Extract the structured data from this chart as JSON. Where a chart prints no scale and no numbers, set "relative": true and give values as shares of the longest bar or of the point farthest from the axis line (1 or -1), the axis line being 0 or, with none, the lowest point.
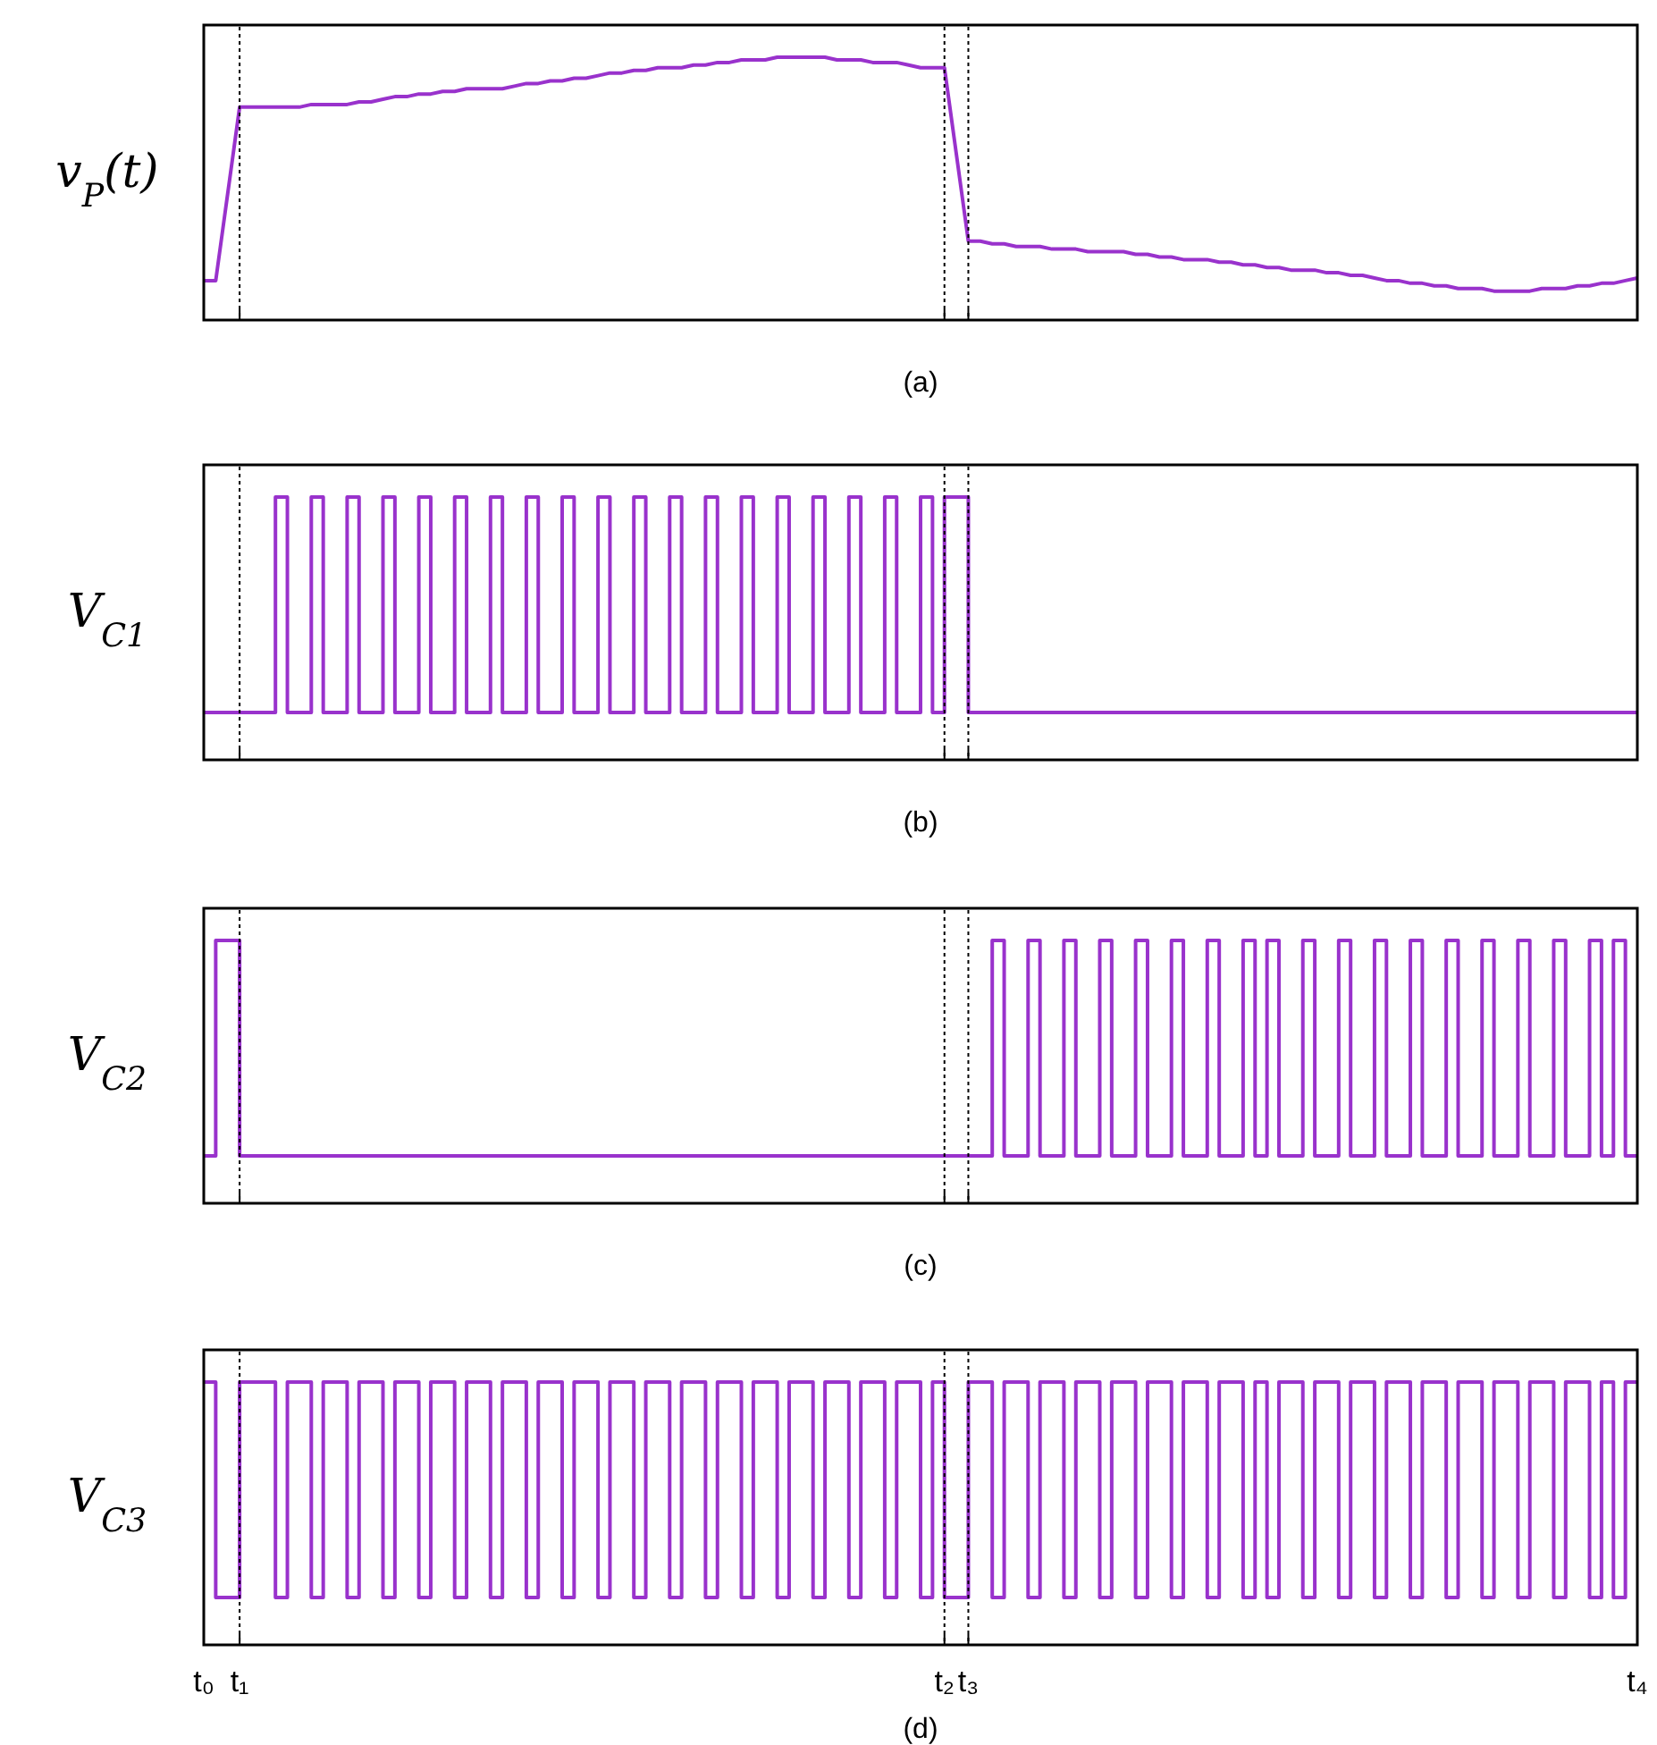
{
  "chart_data": [
    {
      "type": "line",
      "relative": true,
      "ylabel": "v$_{P}$(t)",
      "xlabel": "(a)",
      "tick_labels": false,
      "categories": [
        "t₀",
        null,
        null,
        "t₁",
        null,
        null,
        null,
        null,
        null,
        null,
        null,
        null,
        null,
        null,
        null,
        null,
        null,
        null,
        null,
        null,
        null,
        null,
        null,
        null,
        null,
        null,
        null,
        null,
        null,
        null,
        null,
        null,
        null,
        null,
        null,
        null,
        null,
        null,
        null,
        null,
        null,
        null,
        null,
        null,
        null,
        null,
        null,
        null,
        null,
        null,
        null,
        null,
        null,
        null,
        null,
        null,
        null,
        null,
        null,
        null,
        null,
        null,
        "t₂",
        null,
        "t₃",
        null,
        null,
        null,
        null,
        null,
        null,
        null,
        null,
        null,
        null,
        null,
        null,
        null,
        null,
        null,
        null,
        null,
        null,
        null,
        null,
        null,
        null,
        null,
        null,
        null,
        null,
        null,
        null,
        null,
        null,
        null,
        null,
        null,
        null,
        null,
        null,
        null,
        null,
        null,
        null,
        null,
        null,
        null,
        null,
        null,
        null,
        null,
        null,
        null,
        null,
        null,
        null,
        null,
        null,
        null,
        "t₄"
      ],
      "ref_lines": [
        {
          "axis": "x",
          "value": "t₁",
          "line_style": "dotted"
        },
        {
          "axis": "x",
          "value": "t₂",
          "line_style": "dotted"
        },
        {
          "axis": "x",
          "value": "t₃",
          "line_style": "dotted"
        }
      ],
      "series": [
        {
          "color": "#9932cc",
          "values": [
            0.15,
            0.15,
            0.48,
            0.81,
            0.81,
            0.81,
            0.81,
            0.81,
            0.81,
            0.82,
            0.82,
            0.82,
            0.82,
            0.83,
            0.83,
            0.84,
            0.85,
            0.85,
            0.86,
            0.86,
            0.87,
            0.87,
            0.88,
            0.88,
            0.88,
            0.88,
            0.89,
            0.9,
            0.9,
            0.91,
            0.91,
            0.92,
            0.92,
            0.93,
            0.94,
            0.94,
            0.95,
            0.95,
            0.96,
            0.96,
            0.96,
            0.97,
            0.97,
            0.98,
            0.98,
            0.99,
            0.99,
            0.99,
            1,
            1,
            1,
            1,
            1,
            0.99,
            0.99,
            0.99,
            0.98,
            0.98,
            0.98,
            0.97,
            0.96,
            0.96,
            0.96,
            0.63,
            0.3,
            0.3,
            0.29,
            0.29,
            0.28,
            0.28,
            0.28,
            0.27,
            0.27,
            0.27,
            0.26,
            0.26,
            0.26,
            0.26,
            0.25,
            0.25,
            0.24,
            0.24,
            0.23,
            0.23,
            0.23,
            0.22,
            0.22,
            0.21,
            0.21,
            0.2,
            0.2,
            0.19,
            0.19,
            0.19,
            0.18,
            0.18,
            0.17,
            0.17,
            0.16,
            0.15,
            0.15,
            0.14,
            0.14,
            0.13,
            0.13,
            0.12,
            0.12,
            0.12,
            0.11,
            0.11,
            0.11,
            0.11,
            0.12,
            0.12,
            0.12,
            0.13,
            0.13,
            0.14,
            0.14,
            0.15,
            0.16
          ]
        }
      ]
    },
    {
      "type": "step",
      "relative": true,
      "ylabel": "V$_{C1}$",
      "xlabel": "(b)",
      "tick_labels": false,
      "categories": [
        "t₀",
        null,
        null,
        "t₁",
        null,
        null,
        null,
        null,
        null,
        null,
        null,
        null,
        null,
        null,
        null,
        null,
        null,
        null,
        null,
        null,
        null,
        null,
        null,
        null,
        null,
        null,
        null,
        null,
        null,
        null,
        null,
        null,
        null,
        null,
        null,
        null,
        null,
        null,
        null,
        null,
        null,
        null,
        null,
        null,
        null,
        null,
        null,
        null,
        null,
        null,
        null,
        null,
        null,
        null,
        null,
        null,
        null,
        null,
        null,
        null,
        null,
        null,
        "t₂",
        null,
        "t₃",
        null,
        null,
        null,
        null,
        null,
        null,
        null,
        null,
        null,
        null,
        null,
        null,
        null,
        null,
        null,
        null,
        null,
        null,
        null,
        null,
        null,
        null,
        null,
        null,
        null,
        null,
        null,
        null,
        null,
        null,
        null,
        null,
        null,
        null,
        null,
        null,
        null,
        null,
        null,
        null,
        null,
        null,
        null,
        null,
        null,
        null,
        null,
        null,
        null,
        null,
        null,
        null,
        null,
        null,
        null,
        "t₄"
      ],
      "ref_lines": [
        {
          "axis": "x",
          "value": "t₁",
          "line_style": "dotted"
        },
        {
          "axis": "x",
          "value": "t₂",
          "line_style": "dotted"
        },
        {
          "axis": "x",
          "value": "t₃",
          "line_style": "dotted"
        }
      ],
      "series": [
        {
          "color": "#9932cc",
          "values": [
            0.18,
            0.18,
            0.18,
            0.18,
            0.18,
            0.18,
            1,
            0.18,
            0.18,
            1,
            0.18,
            0.18,
            1,
            0.18,
            0.18,
            1,
            0.18,
            0.18,
            1,
            0.18,
            0.18,
            1,
            0.18,
            0.18,
            1,
            0.18,
            0.18,
            1,
            0.18,
            0.18,
            1,
            0.18,
            0.18,
            1,
            0.18,
            0.18,
            1,
            0.18,
            0.18,
            1,
            0.18,
            0.18,
            1,
            0.18,
            0.18,
            1,
            0.18,
            0.18,
            1,
            0.18,
            0.18,
            1,
            0.18,
            0.18,
            1,
            0.18,
            0.18,
            1,
            0.18,
            0.18,
            1,
            0.18,
            1,
            1,
            0.18,
            0.18,
            0.18,
            0.18,
            0.18,
            0.18,
            0.18,
            0.18,
            0.18,
            0.18,
            0.18,
            0.18,
            0.18,
            0.18,
            0.18,
            0.18,
            0.18,
            0.18,
            0.18,
            0.18,
            0.18,
            0.18,
            0.18,
            0.18,
            0.18,
            0.18,
            0.18,
            0.18,
            0.18,
            0.18,
            0.18,
            0.18,
            0.18,
            0.18,
            0.18,
            0.18,
            0.18,
            0.18,
            0.18,
            0.18,
            0.18,
            0.18,
            0.18,
            0.18,
            0.18,
            0.18,
            0.18,
            0.18,
            0.18,
            0.18,
            0.18,
            0.18,
            0.18,
            0.18,
            0.18,
            0.18,
            0.18
          ]
        }
      ]
    },
    {
      "type": "step",
      "relative": true,
      "ylabel": "V$_{C2}$",
      "xlabel": "(c)",
      "tick_labels": false,
      "categories": [
        "t₀",
        null,
        null,
        "t₁",
        null,
        null,
        null,
        null,
        null,
        null,
        null,
        null,
        null,
        null,
        null,
        null,
        null,
        null,
        null,
        null,
        null,
        null,
        null,
        null,
        null,
        null,
        null,
        null,
        null,
        null,
        null,
        null,
        null,
        null,
        null,
        null,
        null,
        null,
        null,
        null,
        null,
        null,
        null,
        null,
        null,
        null,
        null,
        null,
        null,
        null,
        null,
        null,
        null,
        null,
        null,
        null,
        null,
        null,
        null,
        null,
        null,
        null,
        "t₂",
        null,
        "t₃",
        null,
        null,
        null,
        null,
        null,
        null,
        null,
        null,
        null,
        null,
        null,
        null,
        null,
        null,
        null,
        null,
        null,
        null,
        null,
        null,
        null,
        null,
        null,
        null,
        null,
        null,
        null,
        null,
        null,
        null,
        null,
        null,
        null,
        null,
        null,
        null,
        null,
        null,
        null,
        null,
        null,
        null,
        null,
        null,
        null,
        null,
        null,
        null,
        null,
        null,
        null,
        null,
        null,
        null,
        null,
        "t₄"
      ],
      "ref_lines": [
        {
          "axis": "x",
          "value": "t₁",
          "line_style": "dotted"
        },
        {
          "axis": "x",
          "value": "t₂",
          "line_style": "dotted"
        },
        {
          "axis": "x",
          "value": "t₃",
          "line_style": "dotted"
        }
      ],
      "series": [
        {
          "color": "#9932cc",
          "values": [
            0.18,
            1,
            1,
            0.18,
            0.18,
            0.18,
            0.18,
            0.18,
            0.18,
            0.18,
            0.18,
            0.18,
            0.18,
            0.18,
            0.18,
            0.18,
            0.18,
            0.18,
            0.18,
            0.18,
            0.18,
            0.18,
            0.18,
            0.18,
            0.18,
            0.18,
            0.18,
            0.18,
            0.18,
            0.18,
            0.18,
            0.18,
            0.18,
            0.18,
            0.18,
            0.18,
            0.18,
            0.18,
            0.18,
            0.18,
            0.18,
            0.18,
            0.18,
            0.18,
            0.18,
            0.18,
            0.18,
            0.18,
            0.18,
            0.18,
            0.18,
            0.18,
            0.18,
            0.18,
            0.18,
            0.18,
            0.18,
            0.18,
            0.18,
            0.18,
            0.18,
            0.18,
            0.18,
            0.18,
            0.18,
            0.18,
            1,
            0.18,
            0.18,
            1,
            0.18,
            0.18,
            1,
            0.18,
            0.18,
            1,
            0.18,
            0.18,
            1,
            0.18,
            0.18,
            1,
            0.18,
            0.18,
            1,
            0.18,
            0.18,
            1,
            0.18,
            1,
            0.18,
            0.18,
            1,
            0.18,
            0.18,
            1,
            0.18,
            0.18,
            1,
            0.18,
            0.18,
            1,
            0.18,
            0.18,
            1,
            0.18,
            0.18,
            1,
            0.18,
            0.18,
            1,
            0.18,
            0.18,
            1,
            0.18,
            0.18,
            1,
            0.18,
            1,
            0.18,
            0.18
          ]
        }
      ]
    },
    {
      "type": "step",
      "relative": true,
      "ylabel": "V$_{C3}$",
      "xlabel": "(d)",
      "categories": [
        "t₀",
        null,
        null,
        "t₁",
        null,
        null,
        null,
        null,
        null,
        null,
        null,
        null,
        null,
        null,
        null,
        null,
        null,
        null,
        null,
        null,
        null,
        null,
        null,
        null,
        null,
        null,
        null,
        null,
        null,
        null,
        null,
        null,
        null,
        null,
        null,
        null,
        null,
        null,
        null,
        null,
        null,
        null,
        null,
        null,
        null,
        null,
        null,
        null,
        null,
        null,
        null,
        null,
        null,
        null,
        null,
        null,
        null,
        null,
        null,
        null,
        null,
        null,
        "t₂",
        null,
        "t₃",
        null,
        null,
        null,
        null,
        null,
        null,
        null,
        null,
        null,
        null,
        null,
        null,
        null,
        null,
        null,
        null,
        null,
        null,
        null,
        null,
        null,
        null,
        null,
        null,
        null,
        null,
        null,
        null,
        null,
        null,
        null,
        null,
        null,
        null,
        null,
        null,
        null,
        null,
        null,
        null,
        null,
        null,
        null,
        null,
        null,
        null,
        null,
        null,
        null,
        null,
        null,
        null,
        null,
        null,
        null,
        "t₄"
      ],
      "ref_lines": [
        {
          "axis": "x",
          "value": "t₁",
          "line_style": "dotted"
        },
        {
          "axis": "x",
          "value": "t₂",
          "line_style": "dotted"
        },
        {
          "axis": "x",
          "value": "t₃",
          "line_style": "dotted"
        }
      ],
      "series": [
        {
          "color": "#9932cc",
          "values": [
            1,
            0.18,
            0.18,
            1,
            1,
            1,
            0.18,
            1,
            1,
            0.18,
            1,
            1,
            0.18,
            1,
            1,
            0.18,
            1,
            1,
            0.18,
            1,
            1,
            0.18,
            1,
            1,
            0.18,
            1,
            1,
            0.18,
            1,
            1,
            0.18,
            1,
            1,
            0.18,
            1,
            1,
            0.18,
            1,
            1,
            0.18,
            1,
            1,
            0.18,
            1,
            1,
            0.18,
            1,
            1,
            0.18,
            1,
            1,
            0.18,
            1,
            1,
            0.18,
            1,
            1,
            0.18,
            1,
            1,
            0.18,
            1,
            0.18,
            0.18,
            1,
            1,
            0.18,
            1,
            1,
            0.18,
            1,
            1,
            0.18,
            1,
            1,
            0.18,
            1,
            1,
            0.18,
            1,
            1,
            0.18,
            1,
            1,
            0.18,
            1,
            1,
            0.18,
            1,
            0.18,
            1,
            1,
            0.18,
            1,
            1,
            0.18,
            1,
            1,
            0.18,
            1,
            1,
            0.18,
            1,
            1,
            0.18,
            1,
            1,
            0.18,
            1,
            1,
            0.18,
            1,
            1,
            0.18,
            1,
            1,
            0.18,
            1,
            0.18,
            1,
            1
          ]
        }
      ]
    }
  ]
}
